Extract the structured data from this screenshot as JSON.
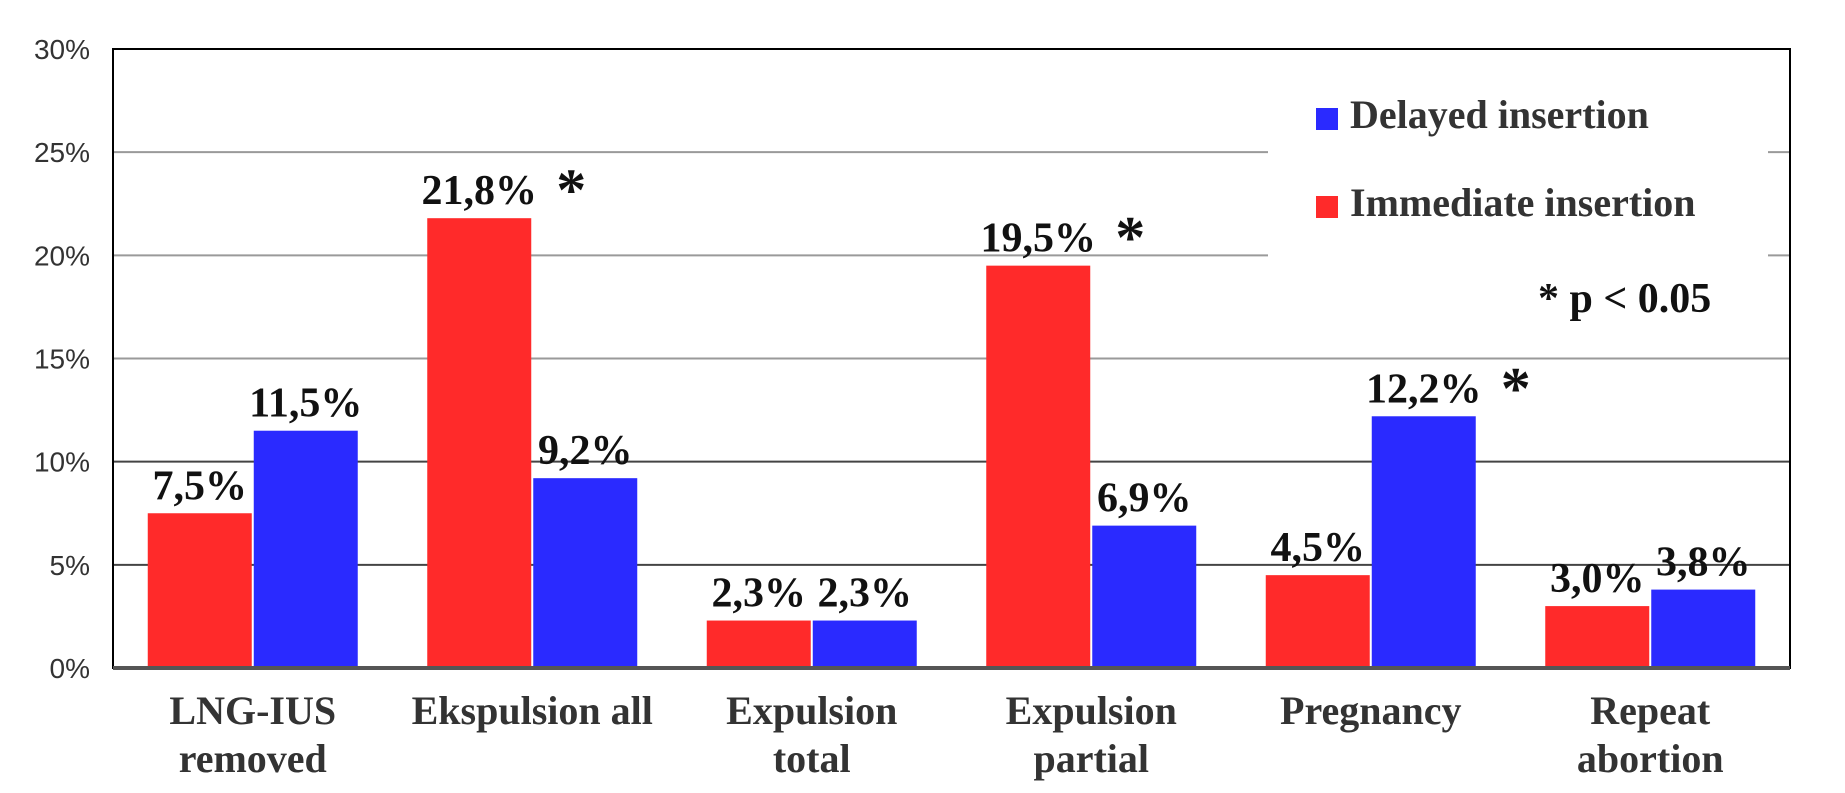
{
  "chart_data": {
    "type": "bar",
    "categories": [
      [
        "LNG-IUS",
        "removed"
      ],
      [
        "Ekspulsion all"
      ],
      [
        "Expulsion",
        "total"
      ],
      [
        "Expulsion",
        "partial"
      ],
      [
        "Pregnancy"
      ],
      [
        "Repeat",
        "abortion"
      ]
    ],
    "series": [
      {
        "name": "Immediate insertion",
        "color": "#ff2a2a",
        "values": [
          7.5,
          21.8,
          2.3,
          19.5,
          4.5,
          3.0
        ],
        "labels": [
          "7,5%",
          "21,8%",
          "2,3%",
          "19,5%",
          "4,5%",
          "3,0%"
        ]
      },
      {
        "name": "Delayed insertion",
        "color": "#2a2aff",
        "values": [
          11.5,
          9.2,
          2.3,
          6.9,
          12.2,
          3.8
        ],
        "labels": [
          "11,5%",
          "9,2%",
          "2,3%",
          "6,9%",
          "12,2%",
          "3,8%"
        ]
      }
    ],
    "significant": [
      {
        "series": 0,
        "category": 1
      },
      {
        "series": 0,
        "category": 3
      },
      {
        "series": 1,
        "category": 4
      }
    ],
    "significance_marker": "*",
    "note": "* p < 0.05",
    "yticks": [
      "0%",
      "5%",
      "10%",
      "15%",
      "20%",
      "25%",
      "30%"
    ],
    "ylim": [
      0,
      30
    ],
    "grid": true,
    "legend_position": "top-right",
    "title": "",
    "xlabel": "",
    "ylabel": ""
  }
}
